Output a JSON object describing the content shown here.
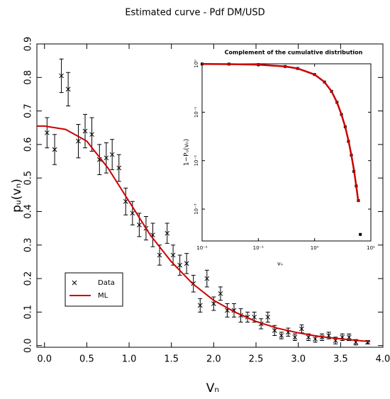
{
  "chart_data": [
    {
      "type": "scatter",
      "title": "Estimated curve - Pdf    DM/USD",
      "x_label": "Vₙ",
      "y_label": "pᵤ(vₙ)",
      "xlim": [
        -0.09,
        4.0
      ],
      "ylim": [
        -0.005,
        0.9
      ],
      "xticks": [
        {
          "value": 0,
          "label": "0.0"
        },
        0.5,
        {
          "value": 1,
          "label": "1.0"
        },
        1.5,
        {
          "value": 2,
          "label": "2.0"
        },
        2.5,
        {
          "value": 3,
          "label": "3.0"
        },
        3.5,
        {
          "value": 4,
          "label": "4.0"
        }
      ],
      "yticks": [
        {
          "value": 0,
          "label": "0.0"
        },
        0.1,
        0.2,
        0.3,
        0.4,
        0.5,
        0.6,
        0.7,
        0.8,
        0.9
      ],
      "legend": "lower left",
      "series": [
        {
          "name": "Data",
          "color": "#000000",
          "marker": "x",
          "x": [
            0.03,
            0.12,
            0.2,
            0.28,
            0.4,
            0.48,
            0.56,
            0.65,
            0.73,
            0.8,
            0.88,
            0.96,
            1.04,
            1.12,
            1.2,
            1.28,
            1.36,
            1.45,
            1.52,
            1.6,
            1.68,
            1.76,
            1.84,
            1.92,
            2.0,
            2.08,
            2.16,
            2.24,
            2.32,
            2.4,
            2.48,
            2.56,
            2.64,
            2.72,
            2.8,
            2.88,
            2.96,
            3.04,
            3.12,
            3.2,
            3.28,
            3.36,
            3.44,
            3.52,
            3.6,
            3.68,
            3.82
          ],
          "values": [
            0.635,
            0.585,
            0.805,
            0.765,
            0.61,
            0.64,
            0.63,
            0.555,
            0.56,
            0.57,
            0.53,
            0.43,
            0.395,
            0.36,
            0.35,
            0.33,
            0.27,
            0.335,
            0.27,
            0.24,
            0.245,
            0.185,
            0.12,
            0.2,
            0.125,
            0.155,
            0.105,
            0.105,
            0.09,
            0.085,
            0.085,
            0.065,
            0.085,
            0.045,
            0.03,
            0.04,
            0.025,
            0.05,
            0.025,
            0.02,
            0.025,
            0.03,
            0.015,
            0.025,
            0.025,
            0.01,
            0.01
          ],
          "errors": [
            0.045,
            0.045,
            0.05,
            0.05,
            0.05,
            0.05,
            0.05,
            0.045,
            0.045,
            0.045,
            0.04,
            0.04,
            0.035,
            0.035,
            0.035,
            0.035,
            0.03,
            0.03,
            0.03,
            0.03,
            0.03,
            0.025,
            0.02,
            0.025,
            0.02,
            0.02,
            0.02,
            0.02,
            0.02,
            0.015,
            0.015,
            0.015,
            0.015,
            0.015,
            0.01,
            0.012,
            0.01,
            0.012,
            0.01,
            0.01,
            0.01,
            0.01,
            0.01,
            0.01,
            0.01,
            0.008,
            0.005
          ]
        },
        {
          "name": "ML",
          "color": "#cc0000",
          "line": true,
          "x": [
            -0.09,
            0,
            0.25,
            0.5,
            0.75,
            1.0,
            1.25,
            1.5,
            1.75,
            2.0,
            2.25,
            2.5,
            2.75,
            3.0,
            3.25,
            3.5,
            3.75,
            3.85
          ],
          "values": [
            0.655,
            0.655,
            0.645,
            0.61,
            0.53,
            0.43,
            0.33,
            0.25,
            0.185,
            0.135,
            0.1,
            0.072,
            0.052,
            0.038,
            0.027,
            0.02,
            0.014,
            0.012
          ]
        }
      ]
    },
    {
      "type": "line",
      "title": "Complement of the cumulative distribution",
      "x_label": "vₙ",
      "y_label": "1−Pᵤ(vₙ)",
      "log": true,
      "xlim": [
        0.01,
        10
      ],
      "ylim": [
        0.00022,
        1
      ],
      "xticks": [
        {
          "value": 0.01,
          "label": "10⁻²"
        },
        {
          "value": 0.1,
          "label": "10⁻¹"
        },
        {
          "value": 1,
          "label": "10⁰"
        },
        {
          "value": 10,
          "label": "10¹"
        }
      ],
      "yticks": [
        {
          "value": 0.001,
          "label": "10⁻³"
        },
        {
          "value": 0.01,
          "label": "10⁻²"
        },
        {
          "value": 0.1,
          "label": "10⁻¹"
        },
        {
          "value": 1,
          "label": "10⁰"
        }
      ],
      "series": [
        {
          "name": "Data",
          "color": "#000000",
          "marker": "square",
          "x": [
            0.01,
            0.03,
            0.1,
            0.3,
            0.5,
            1,
            1.5,
            2,
            2.5,
            3,
            3.5,
            4,
            4.5,
            5,
            5.5,
            6,
            6.5
          ],
          "values": [
            0.99,
            0.985,
            0.96,
            0.88,
            0.8,
            0.6,
            0.42,
            0.27,
            0.16,
            0.09,
            0.05,
            0.025,
            0.013,
            0.006,
            0.003,
            0.0015,
            0.0003
          ]
        },
        {
          "name": "ML",
          "color": "#cc0000",
          "line": true,
          "x": [
            0.01,
            0.03,
            0.1,
            0.3,
            0.5,
            1,
            1.5,
            2,
            2.5,
            3,
            3.5,
            4,
            4.5,
            5,
            5.5,
            6
          ],
          "values": [
            0.99,
            0.985,
            0.96,
            0.88,
            0.8,
            0.6,
            0.42,
            0.27,
            0.16,
            0.09,
            0.05,
            0.026,
            0.013,
            0.0065,
            0.003,
            0.0014
          ]
        }
      ]
    }
  ]
}
